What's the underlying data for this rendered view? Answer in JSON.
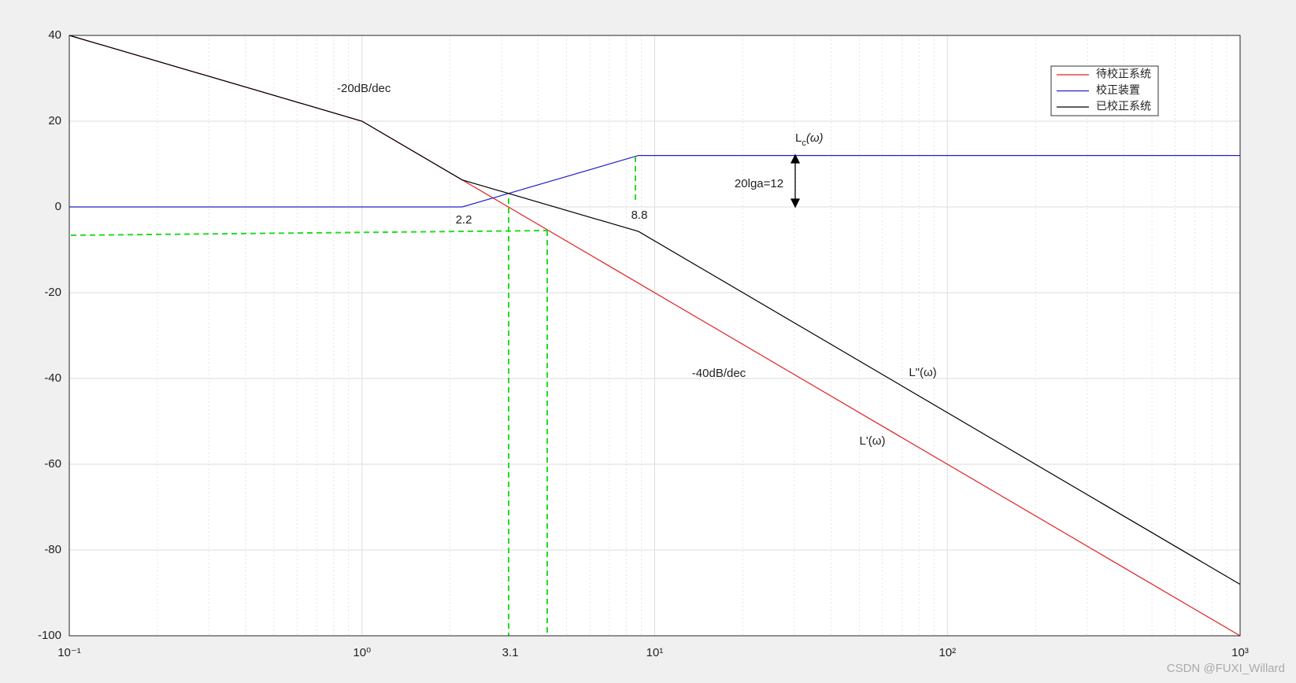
{
  "chart_data": {
    "type": "line",
    "xscale": "log",
    "grid": true,
    "legend": "upper right",
    "xlim": [
      0.1,
      1000
    ],
    "ylim": [
      -100,
      40
    ],
    "xticks": [
      {
        "value": 0.1,
        "label": "10⁻¹"
      },
      {
        "value": 1,
        "label": "10⁰"
      },
      {
        "value": 10,
        "label": "10¹"
      },
      {
        "value": 100,
        "label": "10²"
      },
      {
        "value": 1000,
        "label": "10³"
      }
    ],
    "yticks": [
      -100,
      -80,
      -60,
      -40,
      -20,
      0,
      20,
      40
    ],
    "series": [
      {
        "name": "待校正系统",
        "color": "#e02020",
        "x": [
          0.1,
          1,
          1000
        ],
        "values": [
          40,
          20,
          -100
        ]
      },
      {
        "name": "校正装置",
        "color": "#2020c8",
        "x": [
          0.1,
          2.2,
          8.8,
          1000
        ],
        "values": [
          0,
          0,
          12,
          12
        ]
      },
      {
        "name": "已校正系统",
        "color": "#000000",
        "x": [
          0.1,
          1,
          2.2,
          8.8,
          1000
        ],
        "values": [
          40,
          20,
          6.3,
          -5.7,
          -88
        ]
      }
    ],
    "annotations": [
      "-20dB/dec",
      "2.2",
      "8.8",
      "20lga=12",
      "-40dB/dec",
      "3.1",
      "L\"(ω)",
      "L'(ω)"
    ],
    "lc_label": [
      "L",
      "c",
      "(ω)"
    ],
    "watermark": "CSDN @FUXI_Willard"
  }
}
